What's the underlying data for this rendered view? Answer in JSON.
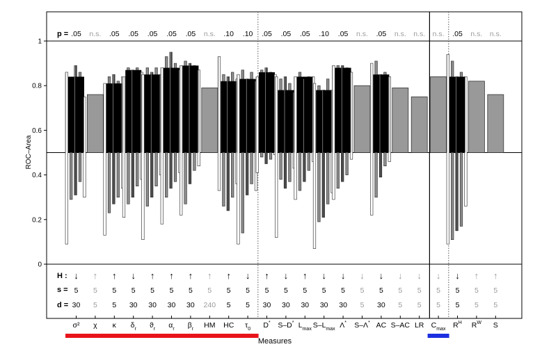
{
  "chart_data": {
    "type": "bar",
    "xlabel": "Measures",
    "ylabel": "ROC–Area",
    "ylim": [
      0,
      1
    ],
    "yticks": [
      "0",
      "0.2",
      "0.4",
      "0.6",
      "0.8",
      "1"
    ],
    "baseline": 0.5,
    "rows": {
      "p": "p =",
      "H": "H :",
      "s": "s =",
      "d": "d ="
    },
    "categories": [
      {
        "label": "σ²",
        "sub": "",
        "sup": "",
        "p": ".05",
        "H": "↓",
        "s": "5",
        "d": "30",
        "sig": true,
        "median": 0.84,
        "bars": [
          [
            0.09,
            0.86
          ],
          [
            0.29,
            0.8
          ],
          [
            0.31,
            0.89
          ],
          [
            0.37,
            0.86
          ],
          [
            0.3,
            0.75
          ]
        ]
      },
      {
        "label": "χ",
        "sub": "",
        "sup": "",
        "p": "n.s.",
        "H": "↑",
        "s": "5",
        "d": "5",
        "sig": false,
        "median": 0.76,
        "bars": []
      },
      {
        "label": "κ",
        "sub": "",
        "sup": "",
        "p": ".05",
        "H": "↑",
        "s": "5",
        "d": "5",
        "sig": true,
        "median": 0.81,
        "bars": [
          [
            0.13,
            0.81
          ],
          [
            0.23,
            0.84
          ],
          [
            0.27,
            0.85
          ],
          [
            0.3,
            0.82
          ],
          [
            0.34,
            0.84
          ]
        ]
      },
      {
        "label": "δ",
        "sub": "r",
        "sup": "",
        "p": ".05",
        "H": "↓",
        "s": "5",
        "d": "30",
        "sig": true,
        "median": 0.87,
        "bars": [
          [
            0.21,
            0.84
          ],
          [
            0.27,
            0.88
          ],
          [
            0.3,
            0.87
          ],
          [
            0.35,
            0.88
          ],
          [
            0.38,
            0.86
          ]
        ]
      },
      {
        "label": "ϑ",
        "sub": "r",
        "sup": "",
        "p": ".05",
        "H": "↑",
        "s": "5",
        "d": "30",
        "sig": true,
        "median": 0.85,
        "bars": [
          [
            0.11,
            0.85
          ],
          [
            0.26,
            0.88
          ],
          [
            0.3,
            0.86
          ],
          [
            0.35,
            0.88
          ],
          [
            0.4,
            0.85
          ]
        ]
      },
      {
        "label": "α",
        "sub": "r",
        "sup": "",
        "p": ".05",
        "H": "↑",
        "s": "5",
        "d": "30",
        "sig": true,
        "median": 0.88,
        "bars": [
          [
            0.18,
            0.88
          ],
          [
            0.3,
            0.93
          ],
          [
            0.34,
            0.95
          ],
          [
            0.37,
            0.9
          ],
          [
            0.41,
            0.87
          ]
        ]
      },
      {
        "label": "β",
        "sub": "r",
        "sup": "",
        "p": ".05",
        "H": "↑",
        "s": "5",
        "d": "30",
        "sig": true,
        "median": 0.89,
        "bars": [
          [
            0.22,
            0.89
          ],
          [
            0.27,
            0.91
          ],
          [
            0.36,
            0.9
          ],
          [
            0.42,
            0.89
          ],
          [
            0.44,
            0.87
          ]
        ]
      },
      {
        "label": "HM",
        "sub": "",
        "sup": "",
        "p": "n.s.",
        "H": "↑",
        "s": "5",
        "d": "240",
        "sig": false,
        "median": 0.79,
        "bars": []
      },
      {
        "label": "HC",
        "sub": "",
        "sup": "",
        "p": ".10",
        "H": "↑",
        "s": "5",
        "d": "5",
        "sig": true,
        "median": 0.82,
        "bars": [
          [
            0.33,
            0.93
          ],
          [
            0.26,
            0.85
          ],
          [
            0.24,
            0.84
          ],
          [
            0.3,
            0.86
          ],
          [
            0.36,
            0.83
          ]
        ]
      },
      {
        "label": "τ",
        "sub": "0",
        "sup": "",
        "p": ".10",
        "H": "↓",
        "s": "5",
        "d": "5",
        "sig": true,
        "median": 0.83,
        "bars": [
          [
            0.09,
            0.85
          ],
          [
            0.14,
            0.87
          ],
          [
            0.31,
            0.83
          ],
          [
            0.36,
            0.86
          ],
          [
            0.33,
            0.82
          ]
        ]
      },
      {
        "label": "D",
        "sub": "",
        "sup": "*",
        "p": ".05",
        "H": "↑",
        "s": "5",
        "d": "30",
        "sig": true,
        "median": 0.86,
        "bars": [
          [
            0.41,
            0.84
          ],
          [
            0.48,
            0.87
          ],
          [
            0.45,
            0.88
          ],
          [
            0.47,
            0.86
          ],
          [
            0.49,
            0.85
          ]
        ]
      },
      {
        "label": "S–D",
        "sub": "",
        "sup": "*",
        "p": ".05",
        "H": "↓",
        "s": "5",
        "d": "30",
        "sig": true,
        "median": 0.78,
        "bars": [
          [
            0.12,
            0.84
          ],
          [
            0.38,
            0.83
          ],
          [
            0.34,
            0.84
          ],
          [
            0.37,
            0.81
          ],
          [
            0.43,
            0.77
          ]
        ]
      },
      {
        "label": "L",
        "sub": "max",
        "sup": "",
        "p": ".05",
        "H": "↑",
        "s": "5",
        "d": "30",
        "sig": true,
        "median": 0.84,
        "bars": [
          [
            0.29,
            0.84
          ],
          [
            0.33,
            0.86
          ],
          [
            0.37,
            0.83
          ],
          [
            0.42,
            0.84
          ],
          [
            0.46,
            0.84
          ]
        ]
      },
      {
        "label": "S–L",
        "sub": "max",
        "sup": "",
        "p": ".10",
        "H": "↓",
        "s": "5",
        "d": "30",
        "sig": true,
        "median": 0.78,
        "bars": [
          [
            0.07,
            0.81
          ],
          [
            0.19,
            0.8
          ],
          [
            0.21,
            0.78
          ],
          [
            0.27,
            0.83
          ],
          [
            0.32,
            0.78
          ]
        ]
      },
      {
        "label": "Λ",
        "sub": "",
        "sup": "*",
        "p": ".05",
        "H": "↓",
        "s": "5",
        "d": "30",
        "sig": true,
        "median": 0.88,
        "bars": [
          [
            0.29,
            0.89
          ],
          [
            0.34,
            0.89
          ],
          [
            0.37,
            0.89
          ],
          [
            0.4,
            0.88
          ],
          [
            0.47,
            0.86
          ]
        ]
      },
      {
        "label": "S–Λ",
        "sub": "",
        "sup": "*",
        "p": "n.s.",
        "H": "↓",
        "s": "5",
        "d": "5",
        "sig": false,
        "median": 0.8,
        "bars": []
      },
      {
        "label": "AC",
        "sub": "",
        "sup": "",
        "p": ".05",
        "H": "↓",
        "s": "5",
        "d": "30",
        "sig": true,
        "median": 0.85,
        "bars": [
          [
            0.22,
            0.9
          ],
          [
            0.3,
            0.91
          ],
          [
            0.39,
            0.85
          ],
          [
            0.44,
            0.86
          ],
          [
            0.46,
            0.84
          ]
        ]
      },
      {
        "label": "S–AC",
        "sub": "",
        "sup": "",
        "p": "n.s.",
        "H": "↓",
        "s": "5",
        "d": "5",
        "sig": false,
        "median": 0.79,
        "bars": []
      },
      {
        "label": "LR",
        "sub": "",
        "sup": "",
        "p": "n.s.",
        "H": "↓",
        "s": "5",
        "d": "5",
        "sig": false,
        "median": 0.75,
        "bars": []
      },
      {
        "label": "C",
        "sub": "max",
        "sup": "",
        "p": "n.s.",
        "H": "↓",
        "s": "5",
        "d": "5",
        "sig": false,
        "median": 0.84,
        "bars": []
      },
      {
        "label": "R",
        "sub": "",
        "sup": "H",
        "p": ".05",
        "H": "↓",
        "s": "5",
        "d": "5",
        "sig": true,
        "median": 0.84,
        "bars": [
          [
            0.09,
            0.94
          ],
          [
            0.11,
            0.91
          ],
          [
            0.15,
            0.84
          ],
          [
            0.17,
            0.86
          ],
          [
            0.26,
            0.84
          ]
        ]
      },
      {
        "label": "R",
        "sub": "",
        "sup": "W",
        "p": "n.s.",
        "H": "↑",
        "s": "5",
        "d": "5",
        "sig": false,
        "median": 0.82,
        "bars": []
      },
      {
        "label": "S",
        "sub": "",
        "sup": "",
        "p": "n.s.",
        "H": "↑",
        "s": "5",
        "d": "5",
        "sig": false,
        "median": 0.76,
        "bars": []
      }
    ],
    "groups": [
      {
        "from": 0,
        "to": 9,
        "color": "#e8141b"
      },
      {
        "from": 19,
        "to": 19,
        "color": "#1c2fe0"
      }
    ],
    "solid_separator_after": 18,
    "dotted_separators_after": [
      9,
      19
    ],
    "colors": {
      "sig_fill": "#000000",
      "nonsig_fill": "#999999",
      "box_light": "#ffffff",
      "box_mid": "#8c8c8c",
      "box_dark": "#4d4d4d",
      "label_nonsig": "#9a9a9a"
    }
  }
}
